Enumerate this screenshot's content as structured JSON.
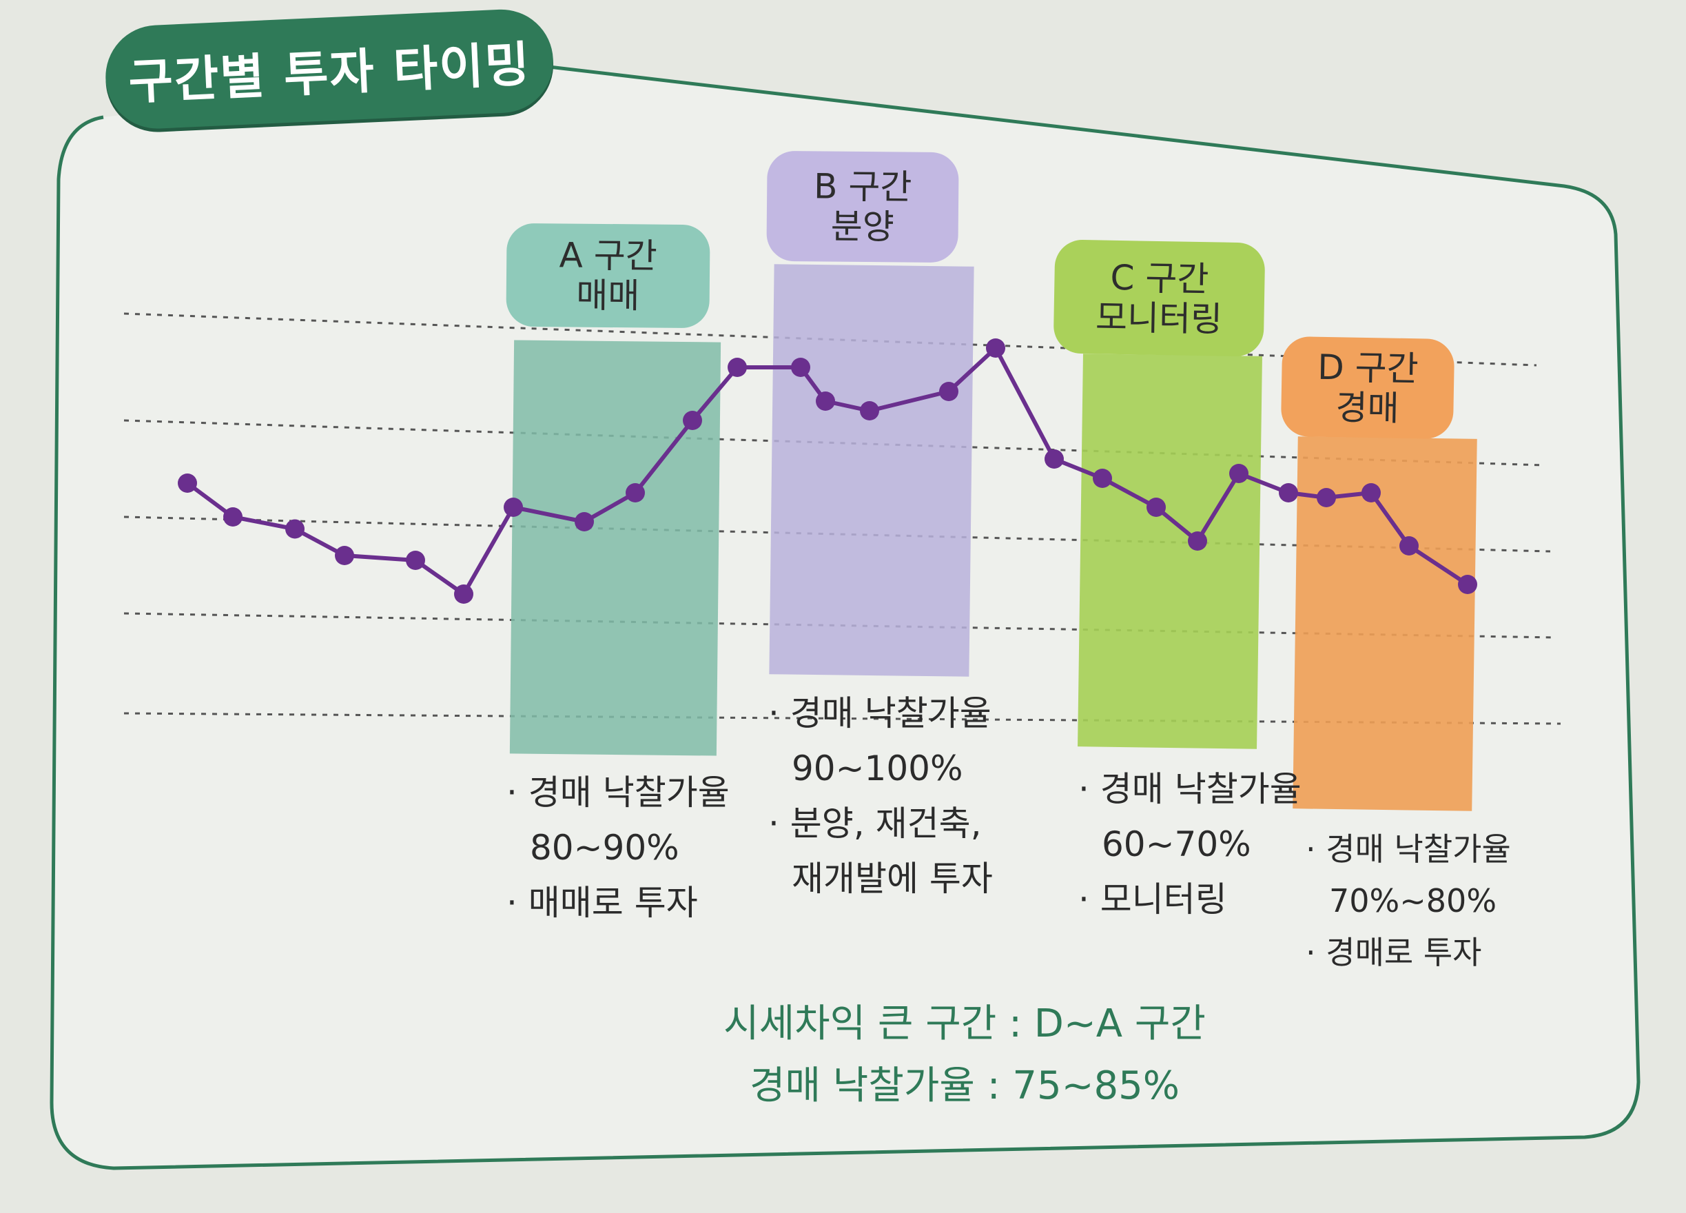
{
  "title": "구간별 투자 타이밍",
  "zones": [
    {
      "id": "a",
      "name": "A 구간",
      "type": "매매",
      "color": "#80bca8",
      "label_bg": "#8fcaba",
      "bullets": [
        "경매 낙찰가율",
        "80~90%",
        "매매로 투자"
      ]
    },
    {
      "id": "b",
      "name": "B 구간",
      "type": "분양",
      "color": "#b9b2dc",
      "label_bg": "#c2b8e2",
      "bullets": [
        "경매 낙찰가율",
        "90~100%",
        "분양, 재건축,",
        "재개발에 투자"
      ]
    },
    {
      "id": "c",
      "name": "C 구간",
      "type": "모니터링",
      "color": "#a5cf55",
      "label_bg": "#aad15a",
      "bullets": [
        "경매 낙찰가율",
        "60~70%",
        "모니터링"
      ]
    },
    {
      "id": "d",
      "name": "D 구간",
      "type": "경매",
      "color": "#ee9f55",
      "label_bg": "#f2a25c",
      "bullets": [
        "경매 낙찰가율",
        "70%~80%",
        "경매로 투자"
      ]
    }
  ],
  "summary": {
    "line1": "시세차익 큰 구간 : D~A 구간",
    "line2": "경매 낙찰가율 : 75~85%"
  },
  "chart_data": {
    "type": "line",
    "series": [
      {
        "values": [
          57,
          50,
          47.5,
          42,
          41,
          34,
          52,
          49,
          55,
          70,
          81,
          81,
          74,
          72,
          76,
          85,
          62,
          58,
          52,
          45,
          59,
          55,
          54,
          55,
          44,
          36
        ]
      }
    ],
    "ylim": [
      0,
      100
    ],
    "grid": true,
    "line_color": "#6a2f8e",
    "marker_color": "#6a2f8e"
  }
}
